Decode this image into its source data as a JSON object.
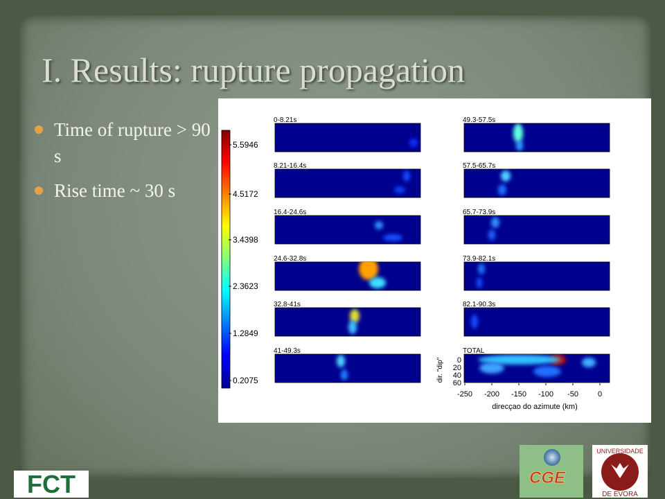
{
  "title": "I. Results: rupture propagation",
  "bullets": [
    "Time of rupture > 90 s",
    "Rise time ~ 30 s"
  ],
  "figure": {
    "colorbar_labels": [
      "5.5946",
      "4.5172",
      "3.4398",
      "2.3623",
      "1.2849",
      "0.2075"
    ],
    "panels": [
      "0-8.21s",
      "8.21-16.4s",
      "16.4-24.6s",
      "24.6-32.8s",
      "32.8-41s",
      "41-49.3s",
      "49.3-57.5s",
      "57.5-65.7s",
      "65.7-73.9s",
      "73.9-82.1s",
      "82.1-90.3s",
      "TOTAL"
    ],
    "total_panel": {
      "yticks": [
        "0",
        "20",
        "40",
        "60"
      ],
      "ylabel": "dir. \"dip\"",
      "xticks": [
        "-250",
        "-200",
        "-150",
        "-100",
        "-50",
        "0"
      ],
      "xlabel": "direcçao do azimute (km)"
    }
  },
  "logos": {
    "fct": "FCT",
    "cge": "CGE",
    "evora_top": "UNIVERSIDADE",
    "evora_bottom": "DE EVORA"
  }
}
